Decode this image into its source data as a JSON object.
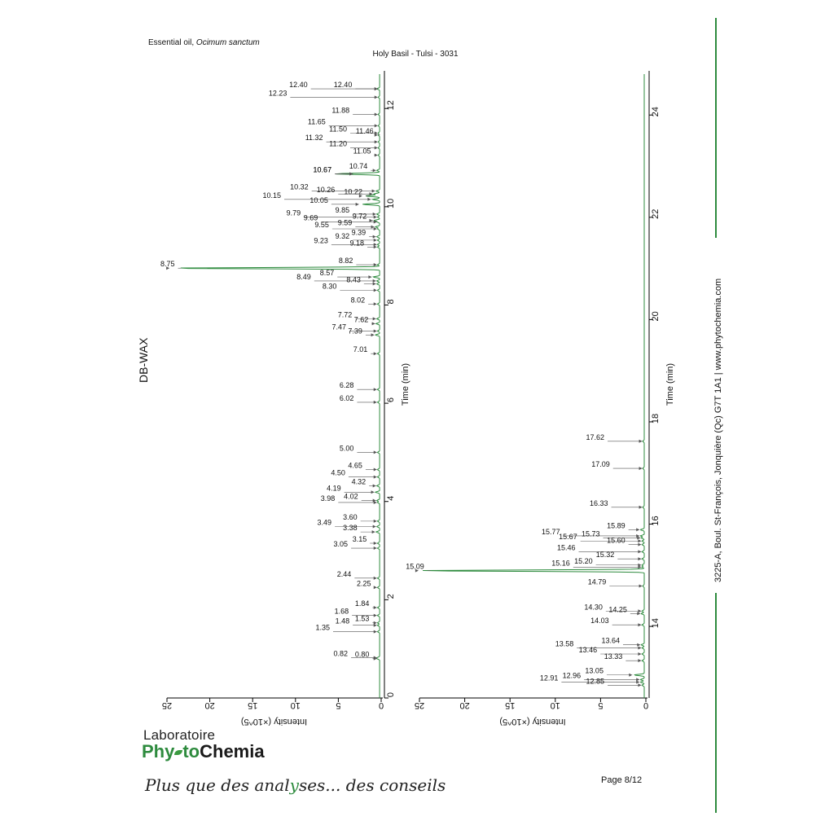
{
  "header": {
    "title_prefix": "Essential oil, ",
    "title_species": "Ocimum sanctum",
    "sample": "Holy Basil - Tulsi - 3031",
    "column": "DB-WAX"
  },
  "footer": {
    "lab_word": "Laboratoire",
    "brand_a": "Phy",
    "brand_b": "to",
    "brand_c": "Chemia",
    "tagline_a": "Plus que des anal",
    "tagline_b": "ses... des conseils",
    "page": "Page 8/12",
    "address": "3225-A, Boul. St-François, Jonquière (Qc)  G7T 1A1  |  www.phytochemia.com"
  },
  "colors": {
    "trace": "#2e8b3e",
    "accent": "#2e8b3e",
    "arrow": "#555555"
  },
  "chart_data": [
    {
      "type": "line",
      "xlabel": "Time (min)",
      "ylabel": "Intensity (×10^5)",
      "xlim": [
        0,
        12.7
      ],
      "xticks": [
        "0",
        "2",
        "4",
        "6",
        "8",
        "10",
        "12"
      ],
      "ylim": [
        0,
        25
      ],
      "yticks": [
        "25",
        "20",
        "15",
        "10",
        "5",
        "0"
      ],
      "peaks": [
        {
          "t": 12.4,
          "h": 0.2,
          "label": "12.40",
          "lx": 3.2
        },
        {
          "t": 12.4,
          "h": 0.2,
          "label": "12.40",
          "lx": 8.4
        },
        {
          "t": 12.23,
          "h": 0.2,
          "label": "12.23",
          "lx": 10.8
        },
        {
          "t": 11.88,
          "h": 0.2,
          "label": "11.88",
          "lx": 3.5
        },
        {
          "t": 11.65,
          "h": 0.2,
          "label": "11.65",
          "lx": 6.3
        },
        {
          "t": 11.5,
          "h": 0.2,
          "label": "11.50",
          "lx": 3.8
        },
        {
          "t": 11.46,
          "h": 0.2,
          "label": "11.46",
          "lx": 0.7
        },
        {
          "t": 11.32,
          "h": 0.2,
          "label": "11.32",
          "lx": 6.6
        },
        {
          "t": 11.2,
          "h": 0.2,
          "label": "11.20",
          "lx": 3.8
        },
        {
          "t": 11.05,
          "h": 0.2,
          "label": "11.05",
          "lx": 1.0
        },
        {
          "t": 10.74,
          "h": 0.4,
          "label": "10.74",
          "lx": 1.4
        },
        {
          "t": 10.67,
          "h": 3.1,
          "label": "10.67",
          "lx": 5.6
        },
        {
          "t": 10.67,
          "h": 3.1,
          "label": "10.67",
          "lx": 5.6
        },
        {
          "t": 10.32,
          "h": 0.5,
          "label": "10.32",
          "lx": 8.3
        },
        {
          "t": 10.26,
          "h": 0.8,
          "label": "10.26",
          "lx": 5.2
        },
        {
          "t": 10.22,
          "h": 2.0,
          "label": "10.22",
          "lx": 2.0
        },
        {
          "t": 10.15,
          "h": 1.0,
          "label": "10.15",
          "lx": 11.5
        },
        {
          "t": 10.05,
          "h": 2.4,
          "label": "10.05",
          "lx": 6.0
        },
        {
          "t": 9.85,
          "h": 0.4,
          "label": "9.85",
          "lx": 3.5
        },
        {
          "t": 9.79,
          "h": 0.3,
          "label": "9.79",
          "lx": 9.2
        },
        {
          "t": 9.72,
          "h": 0.8,
          "label": "9.72",
          "lx": 1.5
        },
        {
          "t": 9.69,
          "h": 0.3,
          "label": "9.69",
          "lx": 7.2
        },
        {
          "t": 9.59,
          "h": 0.6,
          "label": "9.59",
          "lx": 3.2
        },
        {
          "t": 9.55,
          "h": 0.3,
          "label": "9.55",
          "lx": 5.9
        },
        {
          "t": 9.39,
          "h": 0.4,
          "label": "9.39",
          "lx": 1.6
        },
        {
          "t": 9.32,
          "h": 0.3,
          "label": "9.32",
          "lx": 3.5
        },
        {
          "t": 9.23,
          "h": 0.3,
          "label": "9.23",
          "lx": 6.0
        },
        {
          "t": 9.18,
          "h": 0.3,
          "label": "9.18",
          "lx": 1.8
        },
        {
          "t": 8.82,
          "h": 0.3,
          "label": "8.82",
          "lx": 3.1
        },
        {
          "t": 8.75,
          "h": 24.5,
          "label": "8.75",
          "lx": 23.9
        },
        {
          "t": 8.57,
          "h": 0.9,
          "label": "8.57",
          "lx": 5.3
        },
        {
          "t": 8.49,
          "h": 0.4,
          "label": "8.49",
          "lx": 8.0
        },
        {
          "t": 8.43,
          "h": 0.4,
          "label": "8.43",
          "lx": 2.2
        },
        {
          "t": 8.3,
          "h": 0.3,
          "label": "8.30",
          "lx": 5.0
        },
        {
          "t": 8.02,
          "h": 0.3,
          "label": "8.02",
          "lx": 1.7
        },
        {
          "t": 7.72,
          "h": 0.4,
          "label": "7.72",
          "lx": 3.2
        },
        {
          "t": 7.62,
          "h": 0.5,
          "label": "7.62",
          "lx": 1.3
        },
        {
          "t": 7.47,
          "h": 0.3,
          "label": "7.47",
          "lx": 3.9
        },
        {
          "t": 7.39,
          "h": 0.6,
          "label": "7.39",
          "lx": 2.0
        },
        {
          "t": 7.01,
          "h": 0.3,
          "label": "7.01",
          "lx": 1.4
        },
        {
          "t": 6.28,
          "h": 0.3,
          "label": "6.28",
          "lx": 3.0
        },
        {
          "t": 6.02,
          "h": 0.3,
          "label": "6.02",
          "lx": 3.0
        },
        {
          "t": 5.0,
          "h": 0.3,
          "label": "5.00",
          "lx": 3.0
        },
        {
          "t": 4.65,
          "h": 0.3,
          "label": "4.65",
          "lx": 2.0
        },
        {
          "t": 4.5,
          "h": 0.3,
          "label": "4.50",
          "lx": 4.0
        },
        {
          "t": 4.32,
          "h": 0.4,
          "label": "4.32",
          "lx": 1.6
        },
        {
          "t": 4.19,
          "h": 0.6,
          "label": "4.19",
          "lx": 4.5
        },
        {
          "t": 4.02,
          "h": 0.4,
          "label": "4.02",
          "lx": 2.5
        },
        {
          "t": 3.98,
          "h": 0.3,
          "label": "3.98",
          "lx": 5.2
        },
        {
          "t": 3.6,
          "h": 0.3,
          "label": "3.60",
          "lx": 2.6
        },
        {
          "t": 3.49,
          "h": 0.4,
          "label": "3.49",
          "lx": 5.6
        },
        {
          "t": 3.38,
          "h": 0.5,
          "label": "3.38",
          "lx": 2.6
        },
        {
          "t": 3.15,
          "h": 0.3,
          "label": "3.15",
          "lx": 1.5
        },
        {
          "t": 3.05,
          "h": 0.3,
          "label": "3.05",
          "lx": 3.7
        },
        {
          "t": 2.44,
          "h": 0.3,
          "label": "2.44",
          "lx": 3.3
        },
        {
          "t": 2.25,
          "h": 0.3,
          "label": "2.25",
          "lx": 1.0
        },
        {
          "t": 1.84,
          "h": 0.3,
          "label": "1.84",
          "lx": 1.2
        },
        {
          "t": 1.68,
          "h": 0.3,
          "label": "1.68",
          "lx": 3.6
        },
        {
          "t": 1.53,
          "h": 0.3,
          "label": "1.53",
          "lx": 1.2
        },
        {
          "t": 1.48,
          "h": 0.3,
          "label": "1.48",
          "lx": 3.5
        },
        {
          "t": 1.35,
          "h": 0.3,
          "label": "1.35",
          "lx": 5.8
        },
        {
          "t": 0.82,
          "h": 0.3,
          "label": "0.82",
          "lx": 3.7
        },
        {
          "t": 0.8,
          "h": 0.3,
          "label": "0.80",
          "lx": 1.2
        }
      ]
    },
    {
      "type": "line",
      "xlabel": "Time (min)",
      "ylabel": "Intensity (×10^5)",
      "xlim": [
        12.6,
        24.8
      ],
      "xticks": [
        "14",
        "16",
        "18",
        "20",
        "22",
        "24"
      ],
      "ylim": [
        0,
        25
      ],
      "yticks": [
        "25",
        "20",
        "15",
        "10",
        "5",
        "0"
      ],
      "peaks": [
        {
          "t": 17.62,
          "h": 0.2,
          "label": "17.62",
          "lx": 4.4
        },
        {
          "t": 17.09,
          "h": 0.2,
          "label": "17.09",
          "lx": 3.8
        },
        {
          "t": 16.33,
          "h": 0.2,
          "label": "16.33",
          "lx": 4.0
        },
        {
          "t": 15.89,
          "h": 0.5,
          "label": "15.89",
          "lx": 2.1
        },
        {
          "t": 15.77,
          "h": 0.5,
          "label": "15.77",
          "lx": 9.3
        },
        {
          "t": 15.73,
          "h": 0.4,
          "label": "15.73",
          "lx": 4.9
        },
        {
          "t": 15.67,
          "h": 0.3,
          "label": "15.67",
          "lx": 7.4
        },
        {
          "t": 15.6,
          "h": 0.3,
          "label": "15.60",
          "lx": 2.1
        },
        {
          "t": 15.46,
          "h": 0.3,
          "label": "15.46",
          "lx": 7.6
        },
        {
          "t": 15.32,
          "h": 0.3,
          "label": "15.32",
          "lx": 3.3
        },
        {
          "t": 15.2,
          "h": 0.3,
          "label": "15.20",
          "lx": 5.7
        },
        {
          "t": 15.16,
          "h": 0.3,
          "label": "15.16",
          "lx": 8.2
        },
        {
          "t": 15.09,
          "h": 24.9,
          "label": "15.09",
          "lx": 24.3
        },
        {
          "t": 14.79,
          "h": 0.2,
          "label": "14.79",
          "lx": 4.2
        },
        {
          "t": 14.3,
          "h": 0.3,
          "label": "14.30",
          "lx": 4.6
        },
        {
          "t": 14.25,
          "h": 0.4,
          "label": "14.25",
          "lx": 1.9
        },
        {
          "t": 14.03,
          "h": 0.3,
          "label": "14.03",
          "lx": 3.9
        },
        {
          "t": 13.64,
          "h": 0.4,
          "label": "13.64",
          "lx": 2.7
        },
        {
          "t": 13.58,
          "h": 0.3,
          "label": "13.58",
          "lx": 7.8
        },
        {
          "t": 13.46,
          "h": 0.3,
          "label": "13.46",
          "lx": 5.2
        },
        {
          "t": 13.33,
          "h": 0.3,
          "label": "13.33",
          "lx": 2.4
        },
        {
          "t": 13.05,
          "h": 1.3,
          "label": "13.05",
          "lx": 4.5
        },
        {
          "t": 12.96,
          "h": 0.5,
          "label": "12.96",
          "lx": 7.0
        },
        {
          "t": 12.91,
          "h": 0.5,
          "label": "12.91",
          "lx": 9.5
        },
        {
          "t": 12.85,
          "h": 0.3,
          "label": "12.85",
          "lx": 4.4
        }
      ]
    }
  ]
}
